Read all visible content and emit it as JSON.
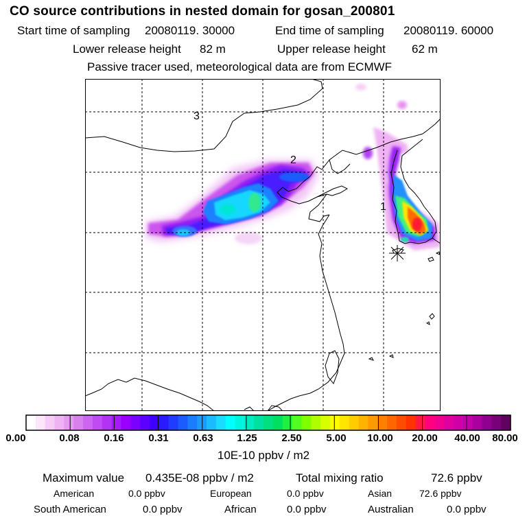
{
  "title": "CO  source contributions in nested domain for gosan_200801",
  "header": {
    "start_label": "Start time of sampling",
    "start_value": "20080119. 30000",
    "end_label": "End time of sampling",
    "end_value": "20080119. 60000",
    "lower_label": "Lower release height",
    "lower_value": "82 m",
    "upper_label": "Upper release height",
    "upper_value": "62 m",
    "note": "Passive tracer used, meteorological data are from ECMWF"
  },
  "map": {
    "region_labels": [
      "1",
      "2",
      "3"
    ],
    "receptor_marker": "asterisk-icon"
  },
  "colorbar": {
    "labels": [
      "0.00",
      "0.08",
      "0.16",
      "0.31",
      "0.63",
      "1.25",
      "2.50",
      "5.00",
      "10.00",
      "20.00",
      "40.00",
      "80.00"
    ],
    "colors": [
      "#ffffff",
      "#fbe6fb",
      "#f6ccf6",
      "#efb3f3",
      "#e699f0",
      "#d880ee",
      "#cc66f2",
      "#bf4cf2",
      "#b333f5",
      "#a61af8",
      "#9900ff",
      "#7a00ff",
      "#5c00ff",
      "#3d00ff",
      "#2a1aff",
      "#1f3cff",
      "#1a5cff",
      "#1a7cff",
      "#1a9cff",
      "#1abcff",
      "#1adcff",
      "#00ffff",
      "#00f5e0",
      "#00ebc0",
      "#00e0a0",
      "#00e080",
      "#00e060",
      "#20f040",
      "#50ff20",
      "#80ff00",
      "#b0ff00",
      "#d8ff00",
      "#ffff00",
      "#ffe600",
      "#ffcc00",
      "#ffb300",
      "#ff9900",
      "#ff8000",
      "#ff6600",
      "#ff4d00",
      "#ff3300",
      "#ff1a40",
      "#ff0080",
      "#f00090",
      "#e000a0",
      "#d000a8",
      "#c000a8",
      "#aa00a0",
      "#900090",
      "#780078",
      "#600060"
    ],
    "units": "10E-10 ppbv / m2"
  },
  "summary": {
    "max_label": "Maximum value",
    "max_value": "0.435E-08 ppbv / m2",
    "total_label": "Total mixing ratio",
    "total_value": "72.6 ppbv",
    "american_label": "American",
    "american_value": "0.0 ppbv",
    "european_label": "European",
    "european_value": "0.0 ppbv",
    "asian_label": "Asian",
    "asian_value": "72.6 ppbv",
    "south_american_label": "South American",
    "south_american_value": "0.0 ppbv",
    "african_label": "African",
    "african_value": "0.0 ppbv",
    "australian_label": "Australian",
    "australian_value": "0.0 ppbv"
  }
}
